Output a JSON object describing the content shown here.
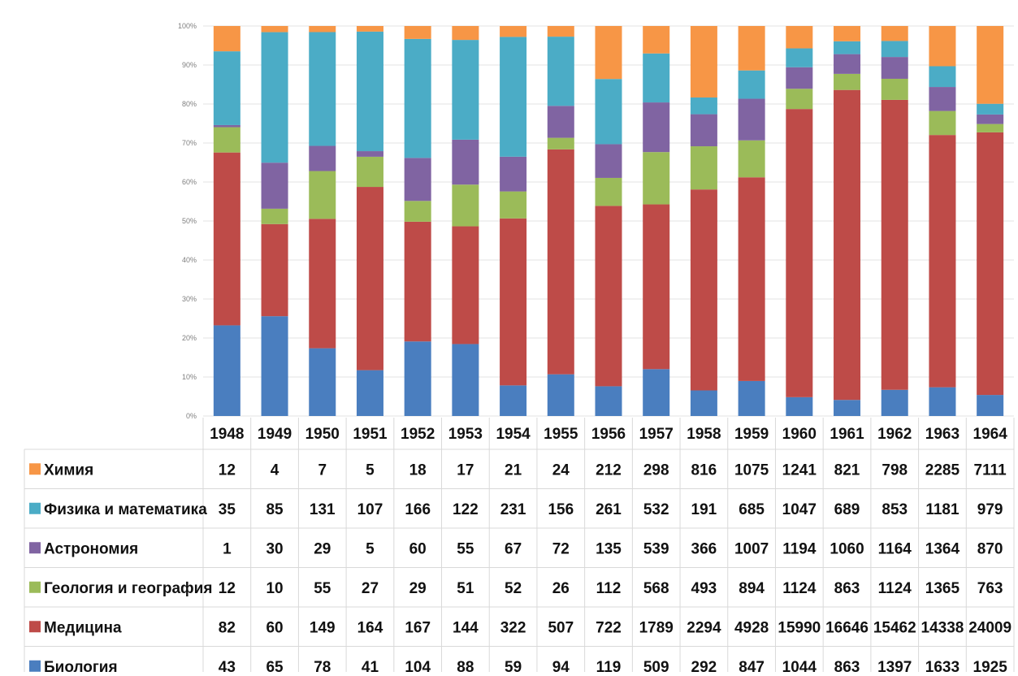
{
  "chart_data": {
    "type": "bar",
    "stacked": "percent",
    "categories": [
      "1948",
      "1949",
      "1950",
      "1951",
      "1952",
      "1953",
      "1954",
      "1955",
      "1956",
      "1957",
      "1958",
      "1959",
      "1960",
      "1961",
      "1962",
      "1963",
      "1964"
    ],
    "y_ticks": [
      "0%",
      "10%",
      "20%",
      "30%",
      "40%",
      "50%",
      "60%",
      "70%",
      "80%",
      "90%",
      "100%"
    ],
    "ylim": [
      0,
      100
    ],
    "grid": true,
    "legend": "data-table",
    "series": [
      {
        "name": "Биология",
        "color": "#4a7ebf",
        "values": [
          43,
          65,
          78,
          41,
          104,
          88,
          59,
          94,
          119,
          509,
          292,
          847,
          1044,
          863,
          1397,
          1633,
          1925
        ]
      },
      {
        "name": "Медицина",
        "color": "#be4b48",
        "values": [
          82,
          60,
          149,
          164,
          167,
          144,
          322,
          507,
          722,
          1789,
          2294,
          4928,
          15990,
          16646,
          15462,
          14338,
          24009
        ]
      },
      {
        "name": "Геология и география",
        "color": "#9bbb59",
        "values": [
          12,
          10,
          55,
          27,
          29,
          51,
          52,
          26,
          112,
          568,
          493,
          894,
          1124,
          863,
          1124,
          1365,
          763
        ]
      },
      {
        "name": "Астрономия",
        "color": "#8064a2",
        "values": [
          1,
          30,
          29,
          5,
          60,
          55,
          67,
          72,
          135,
          539,
          366,
          1007,
          1194,
          1060,
          1164,
          1364,
          870
        ]
      },
      {
        "name": "Физика и математика",
        "color": "#4bacc6",
        "values": [
          35,
          85,
          131,
          107,
          166,
          122,
          231,
          156,
          261,
          532,
          191,
          685,
          1047,
          689,
          853,
          1181,
          979
        ]
      },
      {
        "name": "Химия",
        "color": "#f79646",
        "values": [
          12,
          4,
          7,
          5,
          18,
          17,
          21,
          24,
          212,
          298,
          816,
          1075,
          1241,
          821,
          798,
          2285,
          7111
        ]
      }
    ],
    "table_row_order": [
      5,
      4,
      3,
      2,
      1,
      0
    ]
  }
}
